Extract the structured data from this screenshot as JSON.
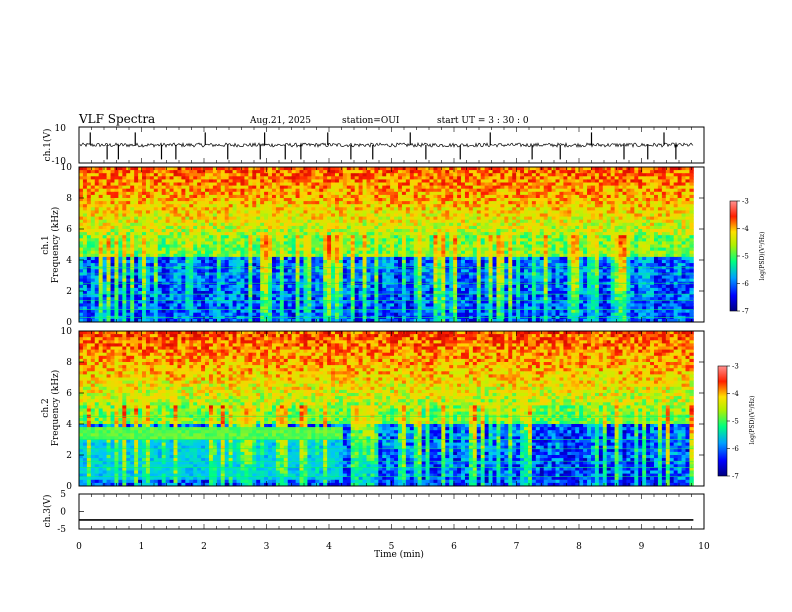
{
  "header": {
    "title": "VLF Spectra",
    "date": "Aug.21, 2025",
    "station": "station=OUI",
    "start": "start UT =  3 : 30 : 0"
  },
  "chart_data": [
    {
      "type": "line",
      "panel": "ch1-waveform",
      "ylabel": "ch.1(V)",
      "ylim": [
        -10,
        10
      ],
      "y_ticks": [
        "10",
        "-10"
      ],
      "xlim": [
        0,
        10
      ],
      "baseline": 0,
      "spikes_min": [
        0.18,
        0.45,
        0.63,
        0.9,
        1.32,
        1.55,
        2.02,
        2.38,
        2.9,
        2.97,
        3.3,
        3.55,
        3.98,
        4.35,
        4.7,
        5.3,
        5.55,
        6.1,
        6.58,
        7.25,
        7.7,
        8.2,
        8.72,
        9.1,
        9.36,
        9.55
      ]
    },
    {
      "type": "heatmap",
      "panel": "ch1-spectrogram",
      "ylabel_top": "ch.1",
      "ylabel": "Frequency (kHz)",
      "ylim": [
        0,
        10
      ],
      "y_ticks": [
        "0",
        "2",
        "4",
        "6",
        "8",
        "10"
      ],
      "xlim": [
        0,
        10
      ],
      "data_end_min": 9.83,
      "noise_floor_top_khz": 5.5,
      "colorbar": {
        "label": "log(PSD)(V²/Hz)",
        "ticks": [
          "-3",
          "-4",
          "-5",
          "-6",
          "-7"
        ],
        "range": [
          -7,
          -3
        ]
      }
    },
    {
      "type": "heatmap",
      "panel": "ch2-spectrogram",
      "ylabel_top": "ch.2",
      "ylabel": "Frequency (kHz)",
      "ylim": [
        0,
        10
      ],
      "y_ticks": [
        "0",
        "2",
        "4",
        "6",
        "8",
        "10"
      ],
      "xlim": [
        0,
        10
      ],
      "data_end_min": 9.83,
      "interference_band_khz": [
        3.1,
        3.8
      ],
      "interference_end_min": 4.2,
      "colorbar": {
        "label": "log(PSD)(V²/Hz)",
        "ticks": [
          "-3",
          "-4",
          "-5",
          "-6",
          "-7"
        ],
        "range": [
          -7,
          -3
        ]
      }
    },
    {
      "type": "line",
      "panel": "ch3-waveform",
      "ylabel": "ch.3(V)",
      "ylim": [
        -5,
        5
      ],
      "y_ticks": [
        "5",
        "0",
        "-5"
      ],
      "xlim": [
        0,
        10
      ],
      "x_ticks": [
        "0",
        "1",
        "2",
        "3",
        "4",
        "5",
        "6",
        "7",
        "8",
        "9",
        "10"
      ],
      "xlabel": "Time (min)",
      "level": -2.4
    }
  ],
  "colors": {
    "colormap": [
      "#000080",
      "#0000ff",
      "#00c0ff",
      "#00ff80",
      "#c8f000",
      "#ffd000",
      "#ff2000",
      "#c00000"
    ]
  }
}
